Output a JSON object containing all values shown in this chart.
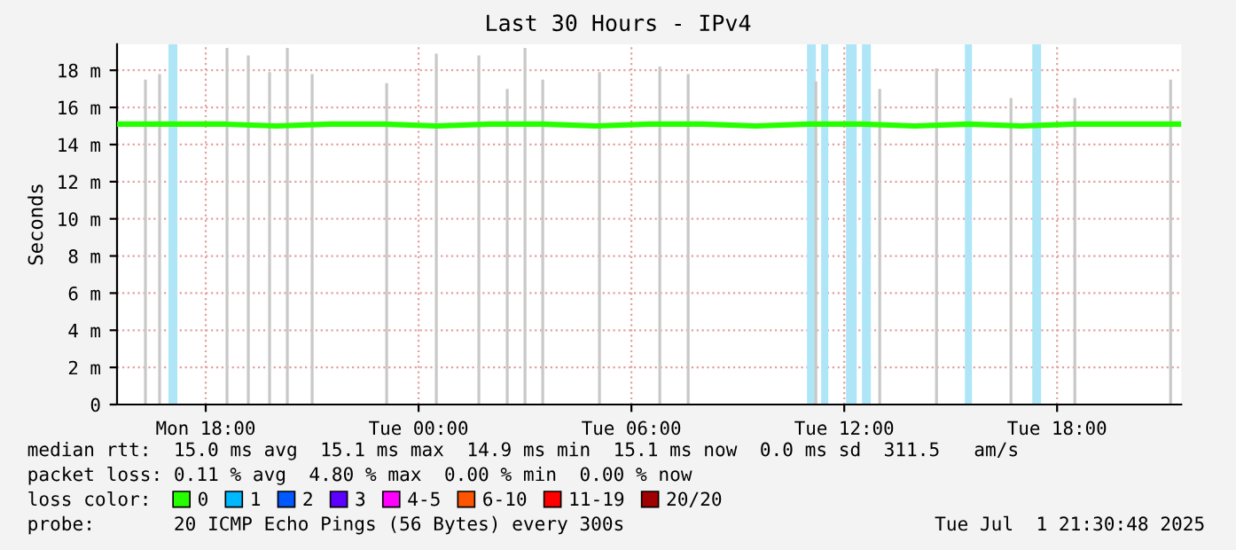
{
  "chart_data": {
    "type": "line",
    "title": "Last 30 Hours - IPv4",
    "ylabel": "Seconds",
    "legend_title": "loss color:",
    "xlim": [
      "2025-06-30T15:30",
      "2025-07-01T21:30"
    ],
    "xticks": [
      {
        "value": "2025-06-30T18:00",
        "label": "Mon 18:00"
      },
      {
        "value": "2025-07-01T00:00",
        "label": "Tue 00:00"
      },
      {
        "value": "2025-07-01T06:00",
        "label": "Tue 06:00"
      },
      {
        "value": "2025-07-01T12:00",
        "label": "Tue 12:00"
      },
      {
        "value": "2025-07-01T18:00",
        "label": "Tue 18:00"
      }
    ],
    "ylim": [
      0,
      19.4
    ],
    "yticks": [
      0,
      {
        "value": 2,
        "label": "2 m"
      },
      {
        "value": 4,
        "label": "4 m"
      },
      {
        "value": 6,
        "label": "6 m"
      },
      {
        "value": 8,
        "label": "8 m"
      },
      {
        "value": 10,
        "label": "10 m"
      },
      {
        "value": 12,
        "label": "12 m"
      },
      {
        "value": 14,
        "label": "14 m"
      },
      {
        "value": 16,
        "label": "16 m"
      },
      {
        "value": 18,
        "label": "18 m"
      }
    ],
    "grid": true,
    "legend": "bottom",
    "marker": "none",
    "line_style": "solid",
    "series": [
      {
        "type": "bar",
        "color": "#c8c8c8",
        "x": [
          "2025-06-30T16:18",
          "2025-06-30T16:42",
          "2025-06-30T17:12",
          "2025-06-30T17:24",
          "2025-06-30T18:00",
          "2025-06-30T18:36",
          "2025-06-30T19:12",
          "2025-06-30T19:48",
          "2025-06-30T20:18",
          "2025-06-30T21:00",
          "2025-06-30T22:00",
          "2025-06-30T22:48",
          "2025-06-30T23:06",
          "2025-07-01T00:30",
          "2025-07-01T01:42",
          "2025-07-01T02:30",
          "2025-07-01T03:00",
          "2025-07-01T03:30",
          "2025-07-01T04:18",
          "2025-07-01T05:06",
          "2025-07-01T06:06",
          "2025-07-01T06:48",
          "2025-07-01T07:36",
          "2025-07-01T09:00",
          "2025-07-01T10:00",
          "2025-07-01T11:12",
          "2025-07-01T12:00",
          "2025-07-01T13:00",
          "2025-07-01T14:00",
          "2025-07-01T14:36",
          "2025-07-01T16:42",
          "2025-07-01T18:30",
          "2025-07-01T20:12",
          "2025-07-01T20:48",
          "2025-07-01T21:12"
        ],
        "values": [
          17.5,
          17.8,
          null,
          null,
          null,
          19.2,
          18.8,
          17.9,
          19.2,
          17.8,
          null,
          null,
          17.3,
          18.9,
          18.8,
          17.0,
          19.2,
          17.5,
          null,
          17.9,
          null,
          18.2,
          17.8,
          null,
          null,
          17.4,
          null,
          17.0,
          null,
          18.1,
          16.5,
          16.5,
          null,
          null,
          17.5
        ]
      },
      {
        "name": "0",
        "color": "#26ff00",
        "x": [
          "2025-06-30T15:30",
          "2025-06-30T17:00",
          "2025-06-30T18:30",
          "2025-06-30T20:00",
          "2025-06-30T21:30",
          "2025-06-30T23:00",
          "2025-07-01T00:30",
          "2025-07-01T02:00",
          "2025-07-01T03:30",
          "2025-07-01T05:00",
          "2025-07-01T06:30",
          "2025-07-01T08:00",
          "2025-07-01T09:30",
          "2025-07-01T11:00",
          "2025-07-01T12:30",
          "2025-07-01T14:00",
          "2025-07-01T15:30",
          "2025-07-01T17:00",
          "2025-07-01T18:30",
          "2025-07-01T20:00",
          "2025-07-01T21:30"
        ],
        "values": [
          15.1,
          15.1,
          15.1,
          15.0,
          15.1,
          15.1,
          15.0,
          15.1,
          15.1,
          15.0,
          15.1,
          15.1,
          15.0,
          15.1,
          15.1,
          15.0,
          15.1,
          15.0,
          15.1,
          15.1,
          15.1
        ]
      },
      {
        "name": "1",
        "color": "#00b8ff"
      },
      {
        "name": "2",
        "color": "#0059ff"
      },
      {
        "name": "3",
        "color": "#5e00ff"
      },
      {
        "name": "4-5",
        "color": "#ff00ff"
      },
      {
        "name": "6-10",
        "color": "#ff5500"
      },
      {
        "name": "11-19",
        "color": "#ff0000"
      },
      {
        "name": "20/20",
        "color": "#a10000"
      }
    ],
    "bands": [
      {
        "axis": "x",
        "from": "2025-06-30T16:57",
        "to": "2025-06-30T17:12",
        "color": "#aee6f7"
      },
      {
        "axis": "x",
        "from": "2025-07-01T10:57",
        "to": "2025-07-01T11:12",
        "color": "#aee6f7"
      },
      {
        "axis": "x",
        "from": "2025-07-01T11:21",
        "to": "2025-07-01T11:33",
        "color": "#aee6f7"
      },
      {
        "axis": "x",
        "from": "2025-07-01T12:03",
        "to": "2025-07-01T12:21",
        "color": "#aee6f7"
      },
      {
        "axis": "x",
        "from": "2025-07-01T12:30",
        "to": "2025-07-01T12:45",
        "color": "#aee6f7"
      },
      {
        "axis": "x",
        "from": "2025-07-01T15:24",
        "to": "2025-07-01T15:36",
        "color": "#aee6f7"
      },
      {
        "axis": "x",
        "from": "2025-07-01T17:18",
        "to": "2025-07-01T17:33",
        "color": "#aee6f7"
      }
    ],
    "annotations": [
      "median rtt:  15.0 ms avg  15.1 ms max  14.9 ms min  15.1 ms now  0.0 ms sd  311.5   am/s",
      "packet loss: 0.11 % avg  4.80 % max  0.00 % min  0.00 % now",
      "probe:       20 ICMP Echo Pings (56 Bytes) every 300s",
      "Tue Jul  1 21:30:48 2025"
    ]
  }
}
